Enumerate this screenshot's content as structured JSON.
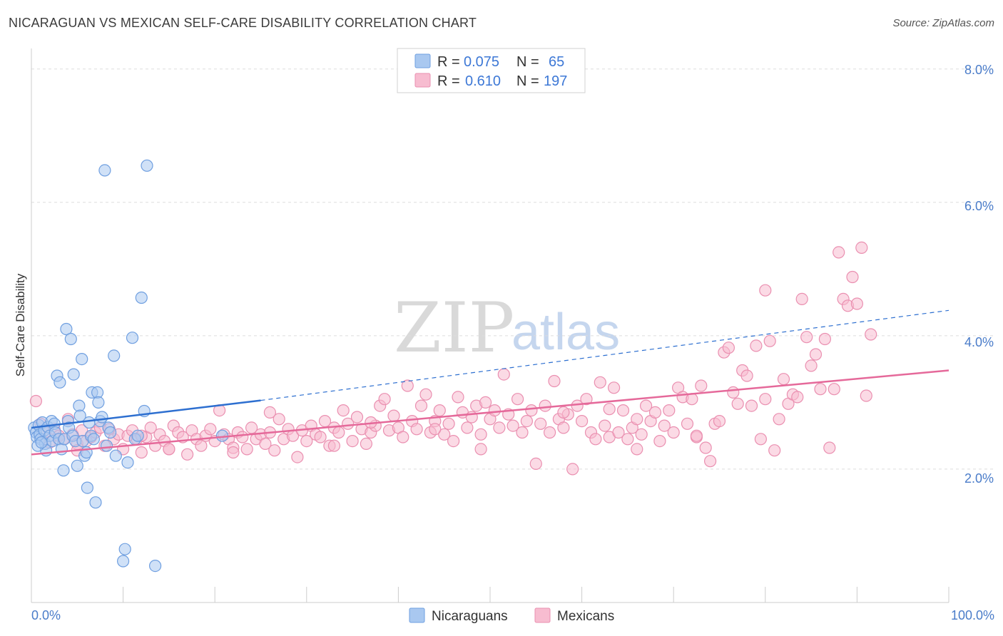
{
  "title": "NICARAGUAN VS MEXICAN SELF-CARE DISABILITY CORRELATION CHART",
  "source": "Source: ZipAtlas.com",
  "watermark": {
    "zip": "ZIP",
    "atlas": "atlas"
  },
  "colors": {
    "nicaraguan_fill": "#a9c8f0",
    "nicaraguan_stroke": "#6f9fe0",
    "nicaraguan_line": "#2d6fd0",
    "mexican_fill": "#f7bcd0",
    "mexican_stroke": "#ea8fb0",
    "mexican_line": "#e5699a",
    "grid": "#dddddd",
    "tick_text": "#4a7cc9"
  },
  "legend": {
    "rows": [
      {
        "r_label": "R =",
        "r_value": "0.075",
        "n_label": "N =",
        "n_value": "65"
      },
      {
        "r_label": "R =",
        "r_value": "0.610",
        "n_label": "N =",
        "n_value": "197"
      }
    ]
  },
  "chart_data": {
    "type": "scatter",
    "title": "NICARAGUAN VS MEXICAN SELF-CARE DISABILITY CORRELATION CHART",
    "xlabel": "",
    "ylabel": "Self-Care Disability",
    "xlim": [
      0,
      100
    ],
    "ylim": [
      0,
      8
    ],
    "x_tick_labels": [
      "0.0%",
      "100.0%"
    ],
    "y_ticks": [
      2,
      4,
      6,
      8
    ],
    "y_tick_labels": [
      "2.0%",
      "4.0%",
      "6.0%",
      "8.0%"
    ],
    "grid": true,
    "legend_position": "bottom-center",
    "series": [
      {
        "name": "Nicaraguans",
        "r": 0.075,
        "n": 65,
        "trend": {
          "x": [
            0,
            25
          ],
          "y": [
            2.62,
            3.03
          ],
          "dashed_extension": {
            "x": [
              25,
              100
            ],
            "y": [
              3.03,
              4.38
            ]
          }
        },
        "points": [
          [
            0.3,
            2.62
          ],
          [
            0.5,
            2.55
          ],
          [
            0.6,
            2.48
          ],
          [
            0.8,
            2.66
          ],
          [
            0.9,
            2.52
          ],
          [
            1.0,
            2.45
          ],
          [
            1.2,
            2.7
          ],
          [
            1.4,
            2.58
          ],
          [
            1.5,
            2.38
          ],
          [
            1.6,
            2.28
          ],
          [
            1.8,
            2.63
          ],
          [
            2.0,
            2.5
          ],
          [
            2.2,
            2.72
          ],
          [
            2.3,
            2.42
          ],
          [
            2.5,
            2.68
          ],
          [
            2.6,
            2.55
          ],
          [
            2.8,
            3.4
          ],
          [
            3.0,
            2.45
          ],
          [
            3.1,
            3.3
          ],
          [
            3.3,
            2.3
          ],
          [
            3.5,
            1.98
          ],
          [
            3.6,
            2.45
          ],
          [
            3.8,
            4.1
          ],
          [
            4.0,
            2.72
          ],
          [
            4.1,
            2.62
          ],
          [
            4.3,
            3.95
          ],
          [
            4.5,
            2.5
          ],
          [
            4.6,
            3.42
          ],
          [
            4.8,
            2.42
          ],
          [
            5.0,
            2.05
          ],
          [
            5.2,
            2.95
          ],
          [
            5.3,
            2.8
          ],
          [
            5.5,
            3.65
          ],
          [
            5.6,
            2.42
          ],
          [
            5.8,
            2.2
          ],
          [
            6.0,
            2.25
          ],
          [
            6.1,
            1.72
          ],
          [
            6.3,
            2.7
          ],
          [
            6.5,
            2.5
          ],
          [
            6.6,
            3.15
          ],
          [
            6.8,
            2.45
          ],
          [
            7.0,
            1.5
          ],
          [
            7.2,
            3.15
          ],
          [
            7.3,
            3.0
          ],
          [
            7.5,
            2.72
          ],
          [
            7.7,
            2.78
          ],
          [
            8.0,
            6.48
          ],
          [
            8.2,
            2.35
          ],
          [
            8.4,
            2.62
          ],
          [
            8.6,
            2.55
          ],
          [
            9.0,
            3.7
          ],
          [
            9.2,
            2.2
          ],
          [
            10.0,
            0.62
          ],
          [
            10.2,
            0.8
          ],
          [
            10.5,
            2.1
          ],
          [
            11.0,
            3.97
          ],
          [
            11.3,
            2.45
          ],
          [
            11.6,
            2.5
          ],
          [
            12.0,
            4.57
          ],
          [
            12.3,
            2.87
          ],
          [
            12.6,
            6.55
          ],
          [
            13.5,
            0.55
          ],
          [
            20.8,
            2.5
          ],
          [
            0.7,
            2.35
          ],
          [
            1.1,
            2.4
          ]
        ]
      },
      {
        "name": "Mexicans",
        "r": 0.61,
        "n": 197,
        "trend": {
          "x": [
            0,
            100
          ],
          "y": [
            2.22,
            3.48
          ]
        },
        "points": [
          [
            0.5,
            3.02
          ],
          [
            1.0,
            2.68
          ],
          [
            1.5,
            2.55
          ],
          [
            2.0,
            2.4
          ],
          [
            2.5,
            2.6
          ],
          [
            3.0,
            2.5
          ],
          [
            3.5,
            2.45
          ],
          [
            4.0,
            2.75
          ],
          [
            4.5,
            2.52
          ],
          [
            5.0,
            2.38
          ],
          [
            5.5,
            2.58
          ],
          [
            6.0,
            2.42
          ],
          [
            6.5,
            2.48
          ],
          [
            7.0,
            2.55
          ],
          [
            7.5,
            2.62
          ],
          [
            8.0,
            2.35
          ],
          [
            8.5,
            2.6
          ],
          [
            9.0,
            2.45
          ],
          [
            9.5,
            2.52
          ],
          [
            10.0,
            2.3
          ],
          [
            10.5,
            2.5
          ],
          [
            11.0,
            2.58
          ],
          [
            11.5,
            2.45
          ],
          [
            12.0,
            2.25
          ],
          [
            12.5,
            2.48
          ],
          [
            13.0,
            2.62
          ],
          [
            13.5,
            2.35
          ],
          [
            14.0,
            2.52
          ],
          [
            14.5,
            2.42
          ],
          [
            15.0,
            2.3
          ],
          [
            15.5,
            2.65
          ],
          [
            16.0,
            2.55
          ],
          [
            16.5,
            2.48
          ],
          [
            17.0,
            2.22
          ],
          [
            17.5,
            2.58
          ],
          [
            18.0,
            2.45
          ],
          [
            18.5,
            2.35
          ],
          [
            19.0,
            2.5
          ],
          [
            19.5,
            2.6
          ],
          [
            20.0,
            2.42
          ],
          [
            20.5,
            2.88
          ],
          [
            21.0,
            2.52
          ],
          [
            21.5,
            2.45
          ],
          [
            22.0,
            2.32
          ],
          [
            22.5,
            2.55
          ],
          [
            23.0,
            2.48
          ],
          [
            23.5,
            2.3
          ],
          [
            24.0,
            2.62
          ],
          [
            24.5,
            2.45
          ],
          [
            25.0,
            2.52
          ],
          [
            25.5,
            2.38
          ],
          [
            26.0,
            2.55
          ],
          [
            26.5,
            2.28
          ],
          [
            27.0,
            2.75
          ],
          [
            27.5,
            2.45
          ],
          [
            28.0,
            2.6
          ],
          [
            28.5,
            2.5
          ],
          [
            29.0,
            2.18
          ],
          [
            29.5,
            2.58
          ],
          [
            30.0,
            2.42
          ],
          [
            30.5,
            2.65
          ],
          [
            31.0,
            2.52
          ],
          [
            31.5,
            2.48
          ],
          [
            32.0,
            2.72
          ],
          [
            32.5,
            2.35
          ],
          [
            33.0,
            2.62
          ],
          [
            33.5,
            2.55
          ],
          [
            34.0,
            2.88
          ],
          [
            34.5,
            2.68
          ],
          [
            35.0,
            2.42
          ],
          [
            35.5,
            2.78
          ],
          [
            36.0,
            2.6
          ],
          [
            36.5,
            2.38
          ],
          [
            37.0,
            2.55
          ],
          [
            37.5,
            2.65
          ],
          [
            38.0,
            2.95
          ],
          [
            38.5,
            3.05
          ],
          [
            39.0,
            2.58
          ],
          [
            39.5,
            2.8
          ],
          [
            40.0,
            2.62
          ],
          [
            40.5,
            2.48
          ],
          [
            41.0,
            3.25
          ],
          [
            41.5,
            2.72
          ],
          [
            42.0,
            2.6
          ],
          [
            42.5,
            2.95
          ],
          [
            43.0,
            3.12
          ],
          [
            43.5,
            2.55
          ],
          [
            44.0,
            2.72
          ],
          [
            44.5,
            2.88
          ],
          [
            45.0,
            2.52
          ],
          [
            45.5,
            2.68
          ],
          [
            46.0,
            2.42
          ],
          [
            46.5,
            3.08
          ],
          [
            47.0,
            2.85
          ],
          [
            47.5,
            2.62
          ],
          [
            48.0,
            2.78
          ],
          [
            48.5,
            2.95
          ],
          [
            49.0,
            2.52
          ],
          [
            49.5,
            3.0
          ],
          [
            50.0,
            2.75
          ],
          [
            50.5,
            2.88
          ],
          [
            51.0,
            2.62
          ],
          [
            51.5,
            3.42
          ],
          [
            52.0,
            2.82
          ],
          [
            52.5,
            2.65
          ],
          [
            53.0,
            3.05
          ],
          [
            53.5,
            2.55
          ],
          [
            54.0,
            2.72
          ],
          [
            54.5,
            2.88
          ],
          [
            55.0,
            2.08
          ],
          [
            55.5,
            2.68
          ],
          [
            56.0,
            2.95
          ],
          [
            56.5,
            2.55
          ],
          [
            57.0,
            3.32
          ],
          [
            57.5,
            2.75
          ],
          [
            58.0,
            2.62
          ],
          [
            58.5,
            2.82
          ],
          [
            59.0,
            2.0
          ],
          [
            59.5,
            2.95
          ],
          [
            60.0,
            2.72
          ],
          [
            60.5,
            3.05
          ],
          [
            61.0,
            2.55
          ],
          [
            61.5,
            2.45
          ],
          [
            62.0,
            3.3
          ],
          [
            62.5,
            2.65
          ],
          [
            63.0,
            2.48
          ],
          [
            63.5,
            3.22
          ],
          [
            64.0,
            2.55
          ],
          [
            64.5,
            2.88
          ],
          [
            65.0,
            2.45
          ],
          [
            65.5,
            2.62
          ],
          [
            66.0,
            2.75
          ],
          [
            66.5,
            2.52
          ],
          [
            67.0,
            2.95
          ],
          [
            67.5,
            2.72
          ],
          [
            68.0,
            2.85
          ],
          [
            68.5,
            2.42
          ],
          [
            69.0,
            2.65
          ],
          [
            69.5,
            2.88
          ],
          [
            70.0,
            2.55
          ],
          [
            70.5,
            3.22
          ],
          [
            71.0,
            3.08
          ],
          [
            71.5,
            2.68
          ],
          [
            72.0,
            3.05
          ],
          [
            72.5,
            2.48
          ],
          [
            73.0,
            3.25
          ],
          [
            73.5,
            2.32
          ],
          [
            74.0,
            2.12
          ],
          [
            74.5,
            2.68
          ],
          [
            75.0,
            2.72
          ],
          [
            75.5,
            3.75
          ],
          [
            76.0,
            3.82
          ],
          [
            76.5,
            3.15
          ],
          [
            77.0,
            2.98
          ],
          [
            77.5,
            3.48
          ],
          [
            78.0,
            3.4
          ],
          [
            78.5,
            2.95
          ],
          [
            79.0,
            3.85
          ],
          [
            79.5,
            2.45
          ],
          [
            80.0,
            3.05
          ],
          [
            80.5,
            3.92
          ],
          [
            81.0,
            2.28
          ],
          [
            81.5,
            2.75
          ],
          [
            82.0,
            3.35
          ],
          [
            82.5,
            2.98
          ],
          [
            83.0,
            3.12
          ],
          [
            83.5,
            3.08
          ],
          [
            84.0,
            4.55
          ],
          [
            84.5,
            3.98
          ],
          [
            85.0,
            3.55
          ],
          [
            85.5,
            3.72
          ],
          [
            86.0,
            3.2
          ],
          [
            86.5,
            3.95
          ],
          [
            87.0,
            2.32
          ],
          [
            87.5,
            3.2
          ],
          [
            88.0,
            5.25
          ],
          [
            88.5,
            4.55
          ],
          [
            89.0,
            4.45
          ],
          [
            89.5,
            4.88
          ],
          [
            90.0,
            4.48
          ],
          [
            90.5,
            5.32
          ],
          [
            91.0,
            3.1
          ],
          [
            91.5,
            4.02
          ],
          [
            72.5,
            2.5
          ],
          [
            66.0,
            2.3
          ],
          [
            58.0,
            2.85
          ],
          [
            44.0,
            2.6
          ],
          [
            33.0,
            2.35
          ],
          [
            22.0,
            2.25
          ],
          [
            12.0,
            2.5
          ],
          [
            5.0,
            2.28
          ],
          [
            80.0,
            4.68
          ],
          [
            63.0,
            2.9
          ],
          [
            49.0,
            2.3
          ],
          [
            37.0,
            2.7
          ],
          [
            26.0,
            2.85
          ],
          [
            15.0,
            2.3
          ]
        ]
      }
    ]
  }
}
